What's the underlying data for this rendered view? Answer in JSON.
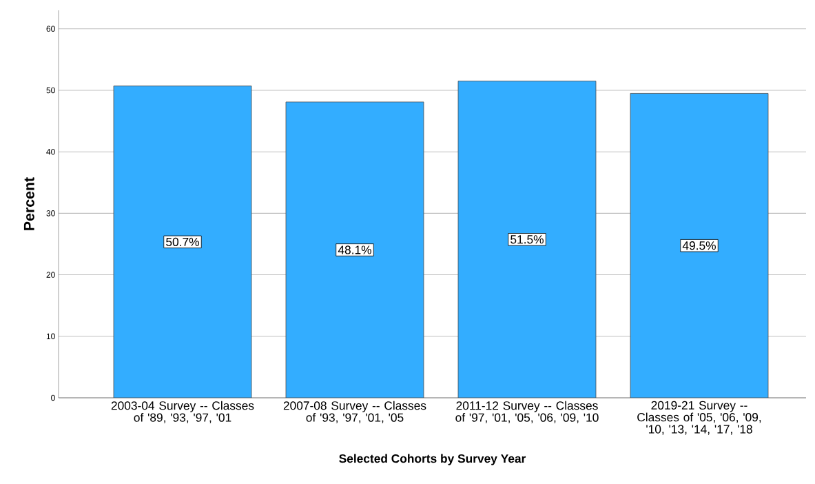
{
  "chart_data": {
    "type": "bar",
    "xlabel": "Selected Cohorts by Survey Year",
    "ylabel": "Percent",
    "categories": [
      "2003-04 Survey -- Classes of '89, '93, '97, '01",
      "2007-08 Survey -- Classes of '93, '97, '01, '05",
      "2011-12 Survey -- Classes of '97, '01, '05, '06, '09, '10",
      "2019-21 Survey -- Classes of '05, '06, '09, '10, '13, '14, '17, '18"
    ],
    "values": [
      50.7,
      48.1,
      51.5,
      49.5
    ],
    "value_labels": [
      "50.7%",
      "48.1%",
      "51.5%",
      "49.5%"
    ],
    "color": "#33adff",
    "ylim": [
      0,
      63
    ],
    "yticks": [
      0,
      10,
      20,
      30,
      40,
      50,
      60
    ],
    "grid": "y"
  }
}
